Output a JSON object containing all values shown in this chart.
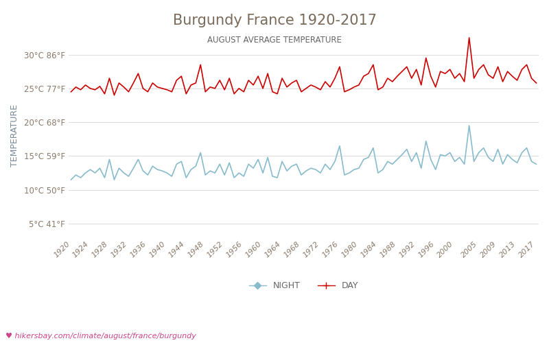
{
  "title": "Burgundy France 1920-2017",
  "subtitle": "AUGUST AVERAGE TEMPERATURE",
  "ylabel": "TEMPERATURE",
  "url_text": "♥ hikersbay.com/climate/august/france/burgundy",
  "title_color": "#7a6a5a",
  "subtitle_color": "#666666",
  "ylabel_color": "#7a8a9a",
  "tick_color": "#8a7a6a",
  "url_color": "#cc4488",
  "background_color": "#ffffff",
  "grid_color": "#dddddd",
  "day_color": "#cc0000",
  "night_color": "#88bbcc",
  "years": [
    1920,
    1921,
    1922,
    1923,
    1924,
    1925,
    1926,
    1927,
    1928,
    1929,
    1930,
    1931,
    1932,
    1933,
    1934,
    1935,
    1936,
    1937,
    1938,
    1939,
    1940,
    1941,
    1942,
    1943,
    1944,
    1945,
    1946,
    1947,
    1948,
    1949,
    1950,
    1951,
    1952,
    1953,
    1954,
    1955,
    1956,
    1957,
    1958,
    1959,
    1960,
    1961,
    1962,
    1963,
    1964,
    1965,
    1966,
    1967,
    1968,
    1969,
    1970,
    1971,
    1972,
    1973,
    1974,
    1975,
    1976,
    1977,
    1978,
    1979,
    1980,
    1981,
    1982,
    1983,
    1984,
    1985,
    1986,
    1987,
    1988,
    1989,
    1990,
    1991,
    1992,
    1993,
    1994,
    1995,
    1996,
    1997,
    1998,
    1999,
    2000,
    2001,
    2002,
    2003,
    2004,
    2005,
    2006,
    2007,
    2008,
    2009,
    2010,
    2011,
    2012,
    2013,
    2014,
    2015,
    2016,
    2017
  ],
  "day_temps": [
    24.5,
    25.2,
    24.8,
    25.5,
    25.0,
    24.8,
    25.3,
    24.2,
    26.5,
    24.0,
    25.8,
    25.2,
    24.5,
    25.8,
    27.2,
    25.0,
    24.5,
    25.8,
    25.2,
    25.0,
    24.8,
    24.5,
    26.2,
    26.8,
    24.2,
    25.5,
    25.8,
    28.5,
    24.5,
    25.2,
    25.0,
    26.2,
    24.8,
    26.5,
    24.2,
    25.0,
    24.5,
    26.2,
    25.5,
    26.8,
    25.0,
    27.2,
    24.5,
    24.2,
    26.5,
    25.2,
    25.8,
    26.2,
    24.5,
    25.0,
    25.5,
    25.2,
    24.8,
    26.0,
    25.2,
    26.5,
    28.2,
    24.5,
    24.8,
    25.2,
    25.5,
    26.8,
    27.2,
    28.5,
    24.8,
    25.2,
    26.5,
    26.0,
    26.8,
    27.5,
    28.2,
    26.5,
    27.8,
    25.5,
    29.5,
    26.8,
    25.2,
    27.5,
    27.2,
    27.8,
    26.5,
    27.2,
    26.0,
    32.5,
    26.5,
    27.8,
    28.5,
    27.0,
    26.5,
    28.2,
    26.0,
    27.5,
    26.8,
    26.2,
    27.8,
    28.5,
    26.5,
    25.8
  ],
  "night_temps": [
    11.5,
    12.2,
    11.8,
    12.5,
    13.0,
    12.5,
    13.2,
    11.8,
    14.5,
    11.5,
    13.2,
    12.5,
    12.0,
    13.2,
    14.5,
    12.8,
    12.2,
    13.5,
    13.0,
    12.8,
    12.5,
    12.0,
    13.8,
    14.2,
    11.8,
    13.0,
    13.5,
    15.5,
    12.2,
    12.8,
    12.5,
    13.8,
    12.2,
    14.0,
    11.8,
    12.5,
    12.0,
    13.8,
    13.2,
    14.5,
    12.5,
    14.8,
    12.0,
    11.8,
    14.2,
    12.8,
    13.5,
    13.8,
    12.2,
    12.8,
    13.2,
    13.0,
    12.5,
    13.8,
    13.0,
    14.2,
    16.5,
    12.2,
    12.5,
    13.0,
    13.2,
    14.5,
    14.8,
    16.2,
    12.5,
    13.0,
    14.2,
    13.8,
    14.5,
    15.2,
    16.0,
    14.2,
    15.5,
    13.2,
    17.2,
    14.5,
    13.0,
    15.2,
    15.0,
    15.5,
    14.2,
    14.8,
    13.8,
    19.5,
    14.2,
    15.5,
    16.2,
    14.8,
    14.2,
    16.0,
    13.8,
    15.2,
    14.5,
    14.0,
    15.5,
    16.2,
    14.2,
    13.8
  ],
  "yticks_c": [
    5,
    10,
    15,
    20,
    25,
    30
  ],
  "yticks_f": [
    41,
    50,
    59,
    68,
    77,
    86
  ],
  "xtick_years": [
    1920,
    1924,
    1928,
    1932,
    1936,
    1940,
    1944,
    1948,
    1952,
    1956,
    1960,
    1964,
    1968,
    1972,
    1976,
    1980,
    1984,
    1988,
    1992,
    1996,
    2000,
    2005,
    2009,
    2013,
    2017
  ],
  "ylim": [
    3,
    33
  ],
  "figsize": [
    8.0,
    5.0
  ],
  "dpi": 100
}
